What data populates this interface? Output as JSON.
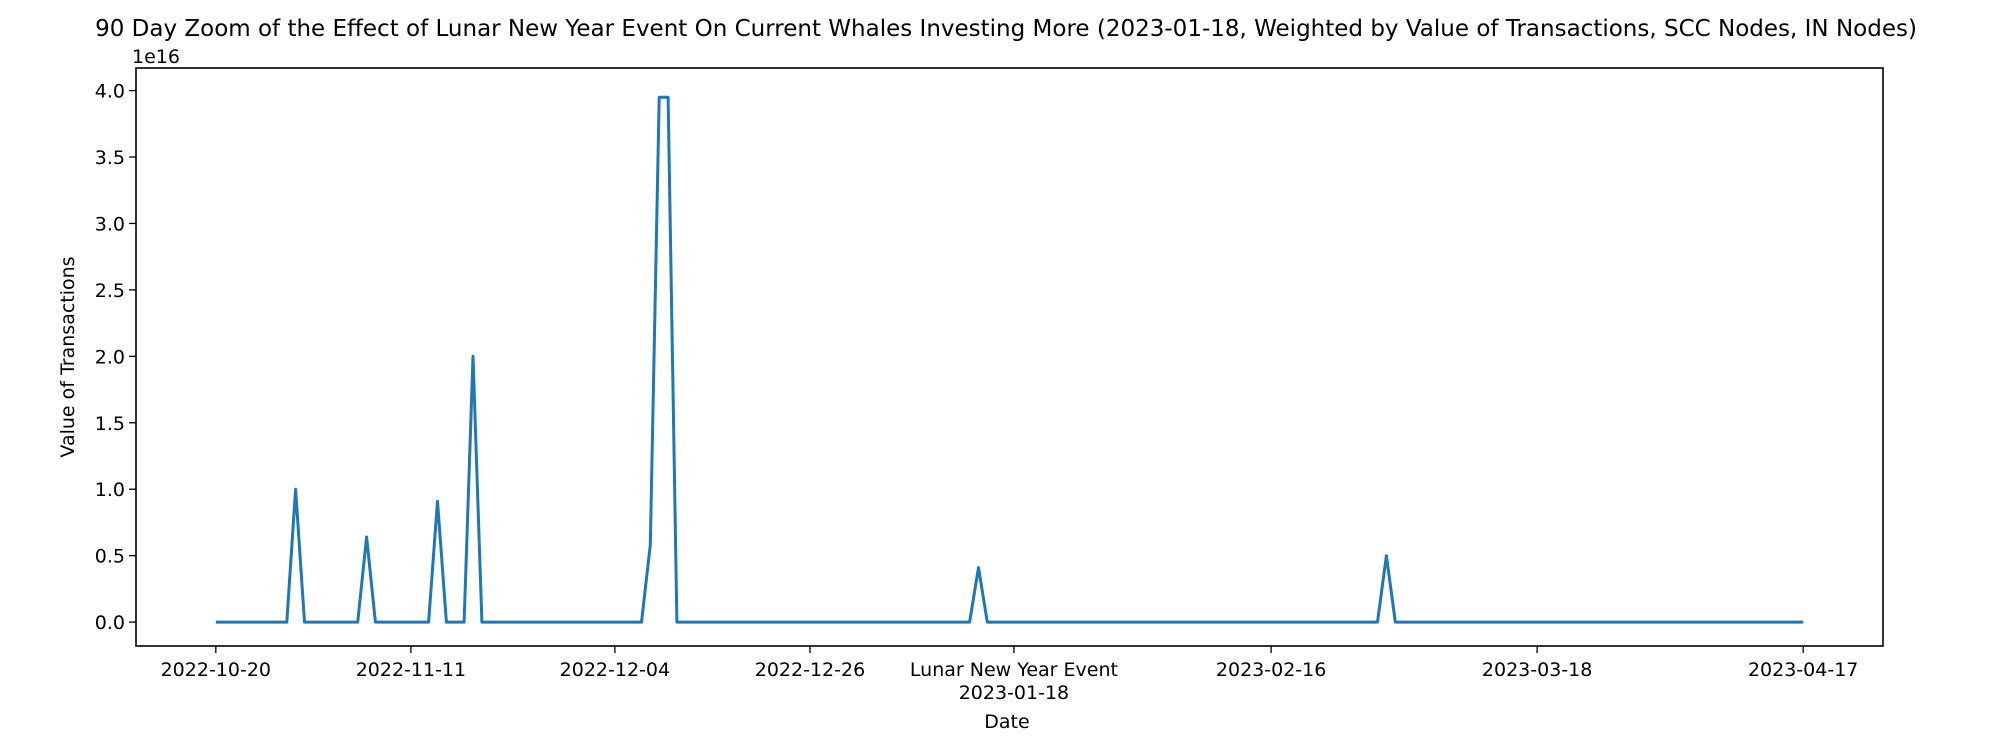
{
  "chart_data": {
    "type": "line",
    "title": "90 Day Zoom of the Effect of Lunar New Year Event On Current Whales Investing More (2023-01-18, Weighted by Value of Transactions, SCC Nodes, IN Nodes)",
    "xlabel": "Date",
    "ylabel": "Value of Transactions",
    "y_offset_label": "1e16",
    "xlim": [
      "2022-10-11",
      "2023-04-26"
    ],
    "ylim": [
      -0.18,
      4.17
    ],
    "y_unit_multiplier": 1e+16,
    "y_ticks": [
      0.0,
      0.5,
      1.0,
      1.5,
      2.0,
      2.5,
      3.0,
      3.5,
      4.0
    ],
    "y_tick_labels": [
      "0.0",
      "0.5",
      "1.0",
      "1.5",
      "2.0",
      "2.5",
      "3.0",
      "3.5",
      "4.0"
    ],
    "x_ticks": [
      "2022-10-20",
      "2022-11-11",
      "2022-12-04",
      "2022-12-26",
      "2023-01-18",
      "2023-02-16",
      "2023-03-18",
      "2023-04-17"
    ],
    "x_tick_labels": [
      "2022-10-20",
      "2022-11-11",
      "2022-12-04",
      "2022-12-26",
      "2023-01-18",
      "2023-02-16",
      "2023-03-18",
      "2023-04-17"
    ],
    "event_label": "Lunar New Year Event",
    "event_date": "2023-01-18",
    "grid": false,
    "legend": "none",
    "color": "#1f77b4",
    "series": [
      {
        "x": [
          "2022-10-20",
          "2022-10-28",
          "2022-10-29",
          "2022-10-30",
          "2022-11-05",
          "2022-11-06",
          "2022-11-07",
          "2022-11-13",
          "2022-11-14",
          "2022-11-15",
          "2022-11-17",
          "2022-11-18",
          "2022-11-19",
          "2022-12-07",
          "2022-12-08",
          "2022-12-09",
          "2022-12-10",
          "2022-12-11",
          "2023-01-13",
          "2023-01-14",
          "2023-01-15",
          "2023-02-28",
          "2023-03-01",
          "2023-03-02",
          "2023-04-17"
        ],
        "y": [
          0,
          0,
          1.0,
          0,
          0,
          0.64,
          0,
          0,
          0.91,
          0,
          0,
          2.0,
          0,
          0,
          0.58,
          3.95,
          3.95,
          0,
          0,
          0.41,
          0,
          0,
          0.5,
          0,
          0
        ]
      }
    ]
  }
}
